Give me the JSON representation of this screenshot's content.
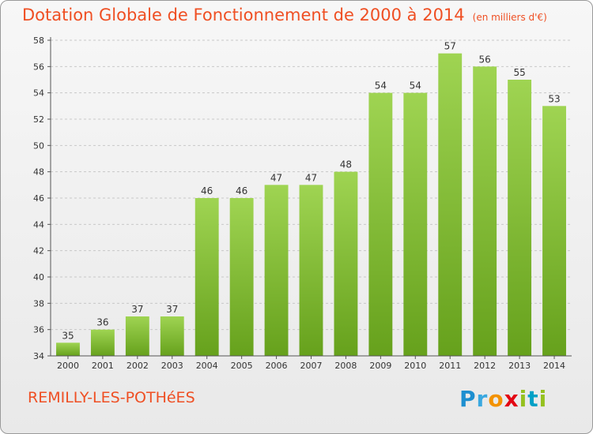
{
  "header": {
    "title": "Dotation Globale de Fonctionnement de 2000 à 2014",
    "unit": "(en milliers d'€)"
  },
  "commune": "REMILLY-LES-POTHéES",
  "logo": {
    "text": "Proxiti",
    "letters": [
      "P",
      "r",
      "o",
      "x",
      "i",
      "t",
      "i"
    ],
    "colors": [
      "#1d8fd0",
      "#3aa8e0",
      "#f39200",
      "#e30613",
      "#95c11f",
      "#00a0c6",
      "#95c11f"
    ]
  },
  "chart_data": {
    "type": "bar",
    "title": "Dotation Globale de Fonctionnement de 2000 à 2014",
    "subtitle": "(en milliers d'€)",
    "xlabel": "",
    "ylabel": "",
    "categories": [
      "2000",
      "2001",
      "2002",
      "2003",
      "2004",
      "2005",
      "2006",
      "2007",
      "2008",
      "2009",
      "2010",
      "2011",
      "2012",
      "2013",
      "2014"
    ],
    "values": [
      35,
      36,
      37,
      37,
      46,
      46,
      47,
      47,
      48,
      54,
      54,
      57,
      56,
      55,
      53
    ],
    "ylim": [
      34,
      58
    ],
    "yticks": [
      34,
      36,
      38,
      40,
      42,
      44,
      46,
      48,
      50,
      52,
      54,
      56,
      58
    ],
    "grid": true,
    "bar_color_top": "#9fd452",
    "bar_color_bottom": "#66a11c",
    "label_color": "#333333",
    "axis_color": "#555555",
    "grid_color": "#c8c8c8"
  }
}
